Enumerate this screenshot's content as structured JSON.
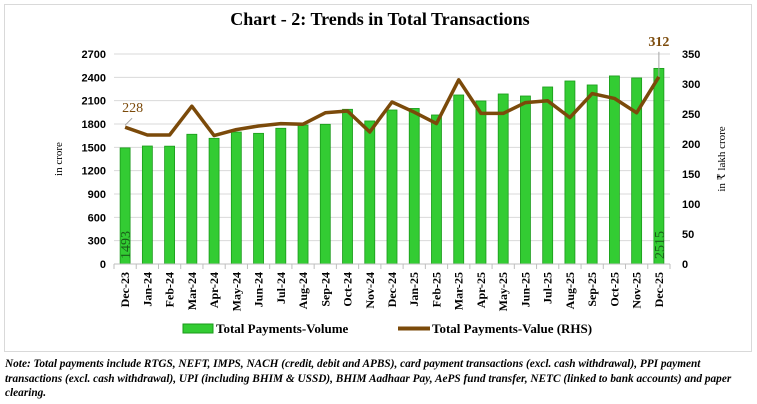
{
  "chart_data": {
    "type": "bar+line",
    "title": "Chart - 2: Trends in Total Transactions",
    "ylabel": "in crore",
    "y2label": "in ₹ lakh crore",
    "ylim": [
      0,
      2700
    ],
    "y2lim": [
      0,
      350
    ],
    "yticks": [
      0,
      300,
      600,
      900,
      1200,
      1500,
      1800,
      2100,
      2400,
      2700
    ],
    "y2ticks": [
      0,
      50,
      100,
      150,
      200,
      250,
      300,
      350
    ],
    "grid": true,
    "legend": "bottom",
    "categories": [
      "Dec-23",
      "Jan-24",
      "Feb-24",
      "Mar-24",
      "Apr-24",
      "May-24",
      "Jun-24",
      "Jul-24",
      "Aug-24",
      "Sep-24",
      "Oct-24",
      "Nov-24",
      "Dec-24",
      "Jan-25",
      "Feb-25",
      "Mar-25",
      "Apr-25",
      "May-25",
      "Jun-25",
      "Jul-25",
      "Aug-25",
      "Sep-25",
      "Oct-25",
      "Nov-25",
      "Dec-25"
    ],
    "series": [
      {
        "name": "Total Payments-Volume",
        "type": "bar",
        "axis": "left",
        "color": "#33cc33",
        "values": [
          1493,
          1517,
          1515,
          1668,
          1616,
          1697,
          1680,
          1745,
          1787,
          1796,
          1989,
          1839,
          1980,
          2000,
          1916,
          2173,
          2096,
          2186,
          2160,
          2276,
          2353,
          2302,
          2418,
          2392,
          2515
        ],
        "data_labels": {
          "0": "1493",
          "24": "2515"
        }
      },
      {
        "name": "Total Payments-Value (RHS)",
        "type": "line",
        "axis": "right",
        "color": "#7b4a0a",
        "values": [
          228,
          215,
          215,
          263,
          214,
          224,
          230,
          234,
          233,
          252,
          255,
          220,
          270,
          253,
          234,
          307,
          251,
          251,
          269,
          272,
          244,
          284,
          276,
          252,
          312
        ],
        "data_labels": {
          "0": "228",
          "24": "312"
        }
      }
    ]
  },
  "note": "Note: Total payments include RTGS, NEFT, IMPS, NACH (credit, debit and APBS), card payment transactions (excl. cash withdrawal), PPI payment transactions (excl. cash withdrawal), UPI (including BHIM & USSD), BHIM Aadhaar Pay, AePS fund transfer, NETC (linked to bank accounts) and paper clearing."
}
